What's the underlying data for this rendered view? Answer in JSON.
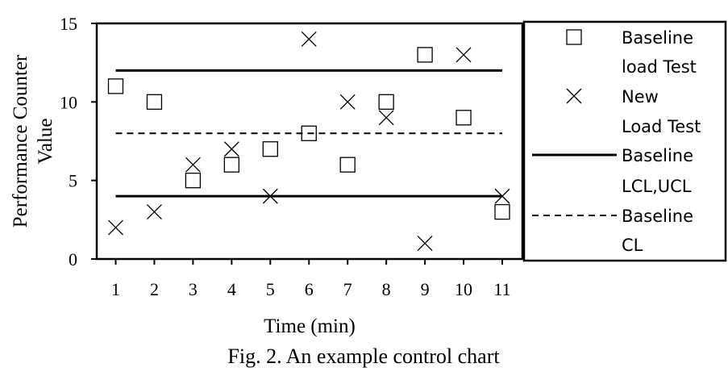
{
  "chart_data": {
    "type": "scatter",
    "title": "",
    "caption": "Fig. 2.  An example control chart",
    "xlabel": "Time (min)",
    "ylabel_lines": [
      "Performance Counter",
      "Value"
    ],
    "x": [
      1,
      2,
      3,
      4,
      5,
      6,
      7,
      8,
      9,
      10,
      11
    ],
    "xlim": [
      0.5,
      11.5
    ],
    "ylim": [
      0,
      15
    ],
    "yticks": [
      0,
      5,
      10,
      15
    ],
    "series": [
      {
        "name": "Baseline load Test",
        "legend_lines": [
          "Baseline",
          "load Test"
        ],
        "marker": "square",
        "points": [
          [
            1,
            11
          ],
          [
            2,
            10
          ],
          [
            3,
            5
          ],
          [
            4,
            6
          ],
          [
            5,
            7
          ],
          [
            6,
            8
          ],
          [
            7,
            6
          ],
          [
            8,
            10
          ],
          [
            9,
            13
          ],
          [
            10,
            9
          ],
          [
            11,
            3
          ]
        ]
      },
      {
        "name": "New Load Test",
        "legend_lines": [
          "New",
          "Load Test"
        ],
        "marker": "x",
        "points": [
          [
            1,
            2
          ],
          [
            2,
            3
          ],
          [
            3,
            6
          ],
          [
            4,
            7
          ],
          [
            5,
            4
          ],
          [
            6,
            14
          ],
          [
            7,
            10
          ],
          [
            8,
            9
          ],
          [
            9,
            1
          ],
          [
            10,
            13
          ],
          [
            11,
            4
          ]
        ]
      }
    ],
    "reference_lines": [
      {
        "name": "Baseline LCL,UCL",
        "legend_lines": [
          "Baseline",
          "LCL,UCL"
        ],
        "style": "solid",
        "values": [
          4,
          12
        ],
        "x_range": [
          1,
          11
        ]
      },
      {
        "name": "Baseline CL",
        "legend_lines": [
          "Baseline",
          "CL"
        ],
        "style": "dashed",
        "values": [
          8
        ],
        "x_range": [
          1,
          11
        ]
      }
    ],
    "legend_position": "right",
    "grid": false
  }
}
